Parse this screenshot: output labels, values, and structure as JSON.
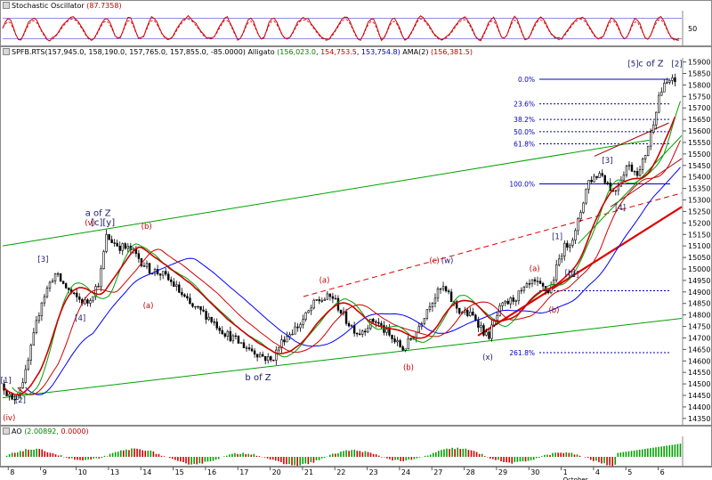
{
  "stochastic": {
    "title": "Stochastic Oscillator",
    "value": "(87.7358)",
    "ticks": [
      "50"
    ]
  },
  "main": {
    "title_prefix": "SPFB.RTS",
    "ohlc": "(157,945.0, 158,190.0, 157,765.0, 157,855.0, -85.0000)",
    "alligator_label": "Alligato",
    "alligator_values": [
      "(156,023.0",
      "154,753.5",
      "153,754.8)"
    ],
    "ama_label": "AMA(2)",
    "ama_value": "(156,381.5)"
  },
  "ao": {
    "title": "AO",
    "value1": "(2.00892,",
    "value2": "0.0000)"
  },
  "x_labels": [
    "8",
    "9",
    "10",
    "13",
    "14",
    "15",
    "16",
    "17",
    "20",
    "21",
    "22",
    "23",
    "24",
    "27",
    "28",
    "29",
    "30",
    "1",
    "4",
    "5",
    "6"
  ],
  "x_sublabel": "October",
  "colors": {
    "candle": "#000000",
    "jaw": "#0000ff",
    "teeth": "#d00000",
    "lips": "#00a000",
    "ama": "#d00000",
    "channel": "#00a000",
    "fib": "#0000c0",
    "wave_label": "#1a1a6a",
    "wave_label_red": "#c00000",
    "stoch_k": "#d00000",
    "stoch_d": "#d00000",
    "ao_up": "#00a000",
    "ao_down": "#d00000"
  },
  "chart_data": {
    "type": "candlestick",
    "y_ticks": [
      "15900",
      "15850",
      "15800",
      "15750",
      "15700",
      "15650",
      "15600",
      "15550",
      "15500",
      "15450",
      "15400",
      "15350",
      "15300",
      "15250",
      "15200",
      "15150",
      "15100",
      "15050",
      "15000",
      "14950",
      "14900",
      "14850",
      "14800",
      "14750",
      "14700",
      "14650",
      "14600",
      "14550",
      "14500",
      "14450",
      "14400",
      "14350"
    ],
    "y_tick_values": [
      15900,
      15850,
      15800,
      15750,
      15700,
      15650,
      15600,
      15550,
      15500,
      15450,
      15400,
      15350,
      15300,
      15250,
      15200,
      15150,
      15100,
      15050,
      15000,
      14950,
      14900,
      14850,
      14800,
      14750,
      14700,
      14650,
      14600,
      14550,
      14500,
      14450,
      14400,
      14350
    ],
    "ylim": [
      14330,
      15910
    ],
    "xlim": [
      0,
      21
    ],
    "fib_levels": [
      {
        "label": "0.0%",
        "price": 15825
      },
      {
        "label": "23.6%",
        "price": 15718
      },
      {
        "label": "38.2%",
        "price": 15650
      },
      {
        "label": "50.0%",
        "price": 15597
      },
      {
        "label": "61.8%",
        "price": 15544
      },
      {
        "label": "100.0%",
        "price": 15370
      },
      {
        "label": "261.8%",
        "price": 14636
      },
      {
        "label": "...",
        "price": 14905
      }
    ],
    "wave_labels": [
      {
        "text": "[1]",
        "x": 0.1,
        "price": 14505,
        "color": "dark"
      },
      {
        "text": "[2]",
        "x": 0.55,
        "price": 14420,
        "color": "dark"
      },
      {
        "text": "(iv)",
        "x": 0.2,
        "price": 14342,
        "color": "red"
      },
      {
        "text": "[3]",
        "x": 1.25,
        "price": 15030,
        "color": "dark"
      },
      {
        "text": "[4]",
        "x": 2.4,
        "price": 14775,
        "color": "dark"
      },
      {
        "text": "a of Z",
        "x": 2.95,
        "price": 15230,
        "color": "dark"
      },
      {
        "text": "(v)",
        "x": 2.7,
        "price": 15190,
        "color": "red"
      },
      {
        "text": "[c][y]",
        "x": 3.1,
        "price": 15190,
        "color": "dark"
      },
      {
        "text": "(b)",
        "x": 4.45,
        "price": 15175,
        "color": "red"
      },
      {
        "text": "(a)",
        "x": 4.5,
        "price": 14830,
        "color": "red"
      },
      {
        "text": "b of Z",
        "x": 7.9,
        "price": 14515,
        "color": "dark"
      },
      {
        "text": "(a)",
        "x": 9.95,
        "price": 14940,
        "color": "red"
      },
      {
        "text": "(b)",
        "x": 12.55,
        "price": 14560,
        "color": "red"
      },
      {
        "text": "(c)",
        "x": 13.35,
        "price": 15025,
        "color": "red"
      },
      {
        "text": "(w)",
        "x": 13.75,
        "price": 15025,
        "color": "dark"
      },
      {
        "text": "(x)",
        "x": 15.0,
        "price": 14605,
        "color": "dark"
      },
      {
        "text": "(a)",
        "x": 16.45,
        "price": 14990,
        "color": "red"
      },
      {
        "text": "[b]",
        "x": 17.55,
        "price": 14970,
        "color": "dark"
      },
      {
        "text": "(b)",
        "x": 17.05,
        "price": 14810,
        "color": "red"
      },
      {
        "text": "[1]",
        "x": 17.15,
        "price": 15130,
        "color": "dark"
      },
      {
        "text": "[2]",
        "x": 17.65,
        "price": 14965,
        "color": "dark"
      },
      {
        "text": "[3]",
        "x": 18.7,
        "price": 15460,
        "color": "dark"
      },
      {
        "text": "[4]",
        "x": 19.1,
        "price": 15255,
        "color": "dark"
      },
      {
        "text": "[5]",
        "x": 19.5,
        "price": 15880,
        "color": "dark"
      },
      {
        "text": "c of Z",
        "x": 20.05,
        "price": 15880,
        "color": "dark"
      },
      {
        "text": "[2]",
        "x": 20.85,
        "price": 15880,
        "color": "dark"
      }
    ],
    "channel_lines": [
      {
        "x1": 0,
        "p1": 15100,
        "x2": 20.0,
        "p2": 15560,
        "color": "green"
      },
      {
        "x1": 0,
        "p1": 14440,
        "x2": 21.0,
        "p2": 14785,
        "color": "green"
      },
      {
        "x1": 9.3,
        "p1": 14880,
        "x2": 21.0,
        "p2": 15330,
        "color": "red",
        "dashed": true
      },
      {
        "x1": 14.7,
        "p1": 14710,
        "x2": 21.0,
        "p2": 15270,
        "color": "red",
        "thick": true
      },
      {
        "x1": 18.3,
        "p1": 15490,
        "x2": 20.6,
        "p2": 15635,
        "color": "darkred"
      },
      {
        "x1": 18.8,
        "p1": 15270,
        "x2": 21.0,
        "p2": 15480,
        "color": "darkred"
      },
      {
        "x1": 17.8,
        "p1": 15110,
        "x2": 21.0,
        "p2": 15580,
        "color": "green"
      }
    ],
    "key_prices": [
      {
        "x": 0.0,
        "p": 14500
      },
      {
        "x": 0.3,
        "p": 14420
      },
      {
        "x": 0.7,
        "p": 14540
      },
      {
        "x": 1.2,
        "p": 14860
      },
      {
        "x": 1.6,
        "p": 14980
      },
      {
        "x": 2.2,
        "p": 14880
      },
      {
        "x": 2.6,
        "p": 14850
      },
      {
        "x": 3.0,
        "p": 14950
      },
      {
        "x": 3.2,
        "p": 15140
      },
      {
        "x": 3.6,
        "p": 15100
      },
      {
        "x": 4.0,
        "p": 15080
      },
      {
        "x": 4.5,
        "p": 15000
      },
      {
        "x": 4.9,
        "p": 14980
      },
      {
        "x": 5.3,
        "p": 14930
      },
      {
        "x": 5.8,
        "p": 14840
      },
      {
        "x": 6.3,
        "p": 14800
      },
      {
        "x": 6.9,
        "p": 14720
      },
      {
        "x": 7.3,
        "p": 14680
      },
      {
        "x": 7.8,
        "p": 14640
      },
      {
        "x": 8.3,
        "p": 14600
      },
      {
        "x": 8.7,
        "p": 14700
      },
      {
        "x": 9.2,
        "p": 14760
      },
      {
        "x": 9.7,
        "p": 14860
      },
      {
        "x": 10.2,
        "p": 14880
      },
      {
        "x": 10.6,
        "p": 14780
      },
      {
        "x": 11.0,
        "p": 14720
      },
      {
        "x": 11.5,
        "p": 14780
      },
      {
        "x": 12.0,
        "p": 14700
      },
      {
        "x": 12.4,
        "p": 14650
      },
      {
        "x": 12.8,
        "p": 14730
      },
      {
        "x": 13.2,
        "p": 14850
      },
      {
        "x": 13.6,
        "p": 14920
      },
      {
        "x": 14.1,
        "p": 14820
      },
      {
        "x": 14.6,
        "p": 14790
      },
      {
        "x": 15.0,
        "p": 14700
      },
      {
        "x": 15.4,
        "p": 14830
      },
      {
        "x": 15.9,
        "p": 14880
      },
      {
        "x": 16.4,
        "p": 14940
      },
      {
        "x": 16.9,
        "p": 14900
      },
      {
        "x": 17.3,
        "p": 15080
      },
      {
        "x": 17.7,
        "p": 15150
      },
      {
        "x": 18.1,
        "p": 15380
      },
      {
        "x": 18.5,
        "p": 15420
      },
      {
        "x": 18.9,
        "p": 15330
      },
      {
        "x": 19.3,
        "p": 15450
      },
      {
        "x": 19.7,
        "p": 15420
      },
      {
        "x": 20.0,
        "p": 15560
      },
      {
        "x": 20.3,
        "p": 15760
      },
      {
        "x": 20.6,
        "p": 15820
      },
      {
        "x": 20.8,
        "p": 15810
      }
    ]
  }
}
